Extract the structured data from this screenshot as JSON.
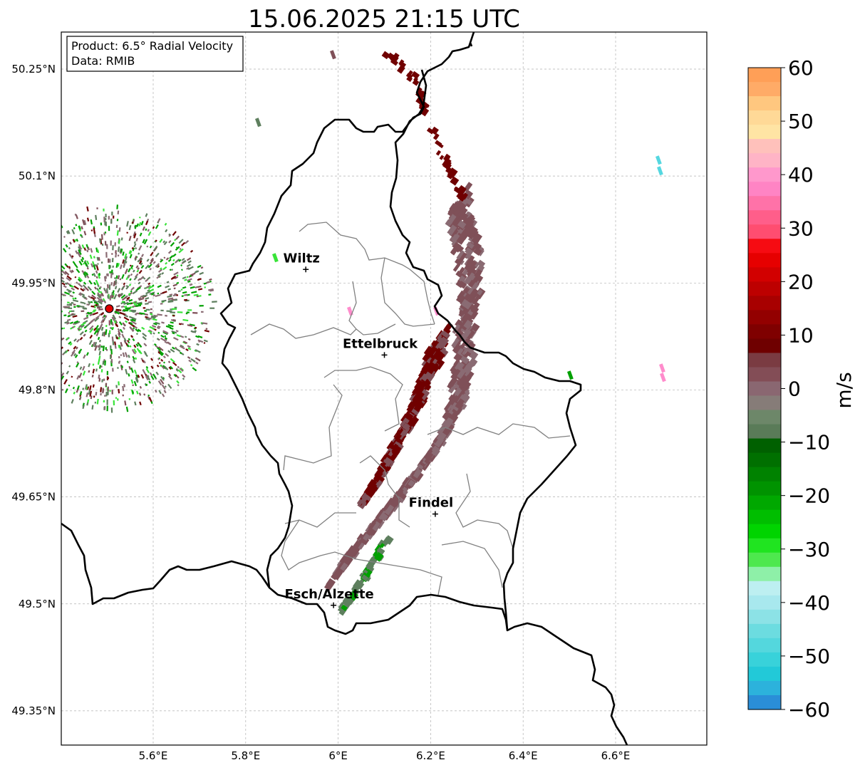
{
  "map": {
    "title": "15.06.2025 21:15 UTC",
    "info_product": "Product: 6.5° Radial Velocity",
    "info_data": "Data: RMIB",
    "x_ticks": [
      {
        "value": 5.6,
        "label": "5.6°E"
      },
      {
        "value": 5.8,
        "label": "5.8°E"
      },
      {
        "value": 6.0,
        "label": "6°E"
      },
      {
        "value": 6.2,
        "label": "6.2°E"
      },
      {
        "value": 6.4,
        "label": "6.4°E"
      },
      {
        "value": 6.6,
        "label": "6.6°E"
      }
    ],
    "y_ticks": [
      {
        "value": 50.25,
        "label": "50.25°N"
      },
      {
        "value": 50.1,
        "label": "50.1°N"
      },
      {
        "value": 49.95,
        "label": "49.95°N"
      },
      {
        "value": 49.8,
        "label": "49.8°N"
      },
      {
        "value": 49.65,
        "label": "49.65°N"
      },
      {
        "value": 49.5,
        "label": "49.5°N"
      },
      {
        "value": 49.35,
        "label": "49.35°N"
      }
    ],
    "cities": [
      {
        "name": "Wiltz",
        "lon": 5.93,
        "lat": 49.969
      },
      {
        "name": "Ettelbruck",
        "lon": 6.1,
        "lat": 49.849
      },
      {
        "name": "Findel",
        "lon": 6.21,
        "lat": 49.626
      },
      {
        "name": "Esch/Alzette",
        "lon": 5.99,
        "lat": 49.498
      }
    ],
    "radar_site": {
      "lon": 5.505,
      "lat": 49.914
    },
    "colorbar": {
      "label": "m/s",
      "ticks": [
        "60",
        "50",
        "40",
        "30",
        "20",
        "10",
        "0",
        "−10",
        "−20",
        "−30",
        "−40",
        "−50",
        "−60"
      ],
      "colors": [
        "#ff9f57",
        "#ffab67",
        "#ffc77f",
        "#ffd997",
        "#ffe4a4",
        "#ffc1bb",
        "#ffb4c6",
        "#ff98cc",
        "#ff84c4",
        "#ff72a8",
        "#ff5e8a",
        "#ff4d70",
        "#f60b12",
        "#e60000",
        "#d20000",
        "#bd0000",
        "#a80000",
        "#930000",
        "#7f0000",
        "#6f0000",
        "#7a3b42",
        "#834d56",
        "#8a6771",
        "#867c78",
        "#6d8769",
        "#5a7b58",
        "#006000",
        "#007000",
        "#008200",
        "#009300",
        "#00a800",
        "#00be00",
        "#00d400",
        "#20e420",
        "#4ee84e",
        "#8ef0a8",
        "#bdeff1",
        "#a8e8ee",
        "#8ce2e6",
        "#6cdce0",
        "#54d7dd",
        "#38d2da",
        "#22c9d8",
        "#2cb2dc",
        "#2a8ed8"
      ]
    },
    "echo_colors": {
      "dark_red": "#700000",
      "mauve": "#7f5058",
      "grey_mauve": "#8a6b73",
      "grey_green": "#5e7f5e",
      "green": "#00a000",
      "light_green": "#39e439",
      "cyan": "#55d7e0",
      "pink": "#ff8ccc"
    }
  }
}
